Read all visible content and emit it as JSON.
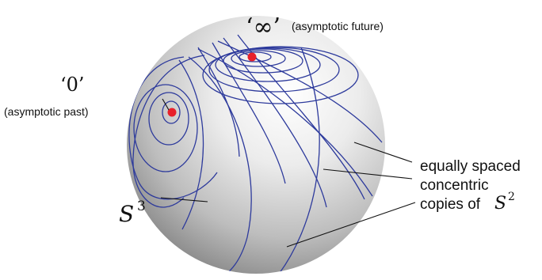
{
  "labels": {
    "infinity_symbol": "‘∞’",
    "future_label": "(asymptotic future)",
    "zero_symbol": "‘0’",
    "past_label": "(asymptotic past)",
    "sphere3_base": "S",
    "sphere3_exp": "3",
    "annotation_line1": "equally spaced",
    "annotation_line2": "concentric",
    "annotation_line3": "copies of",
    "sphere2_base": "S",
    "sphere2_exp": "2"
  },
  "colors": {
    "contour": "#2d3a9c",
    "marker": "#e8202a"
  }
}
